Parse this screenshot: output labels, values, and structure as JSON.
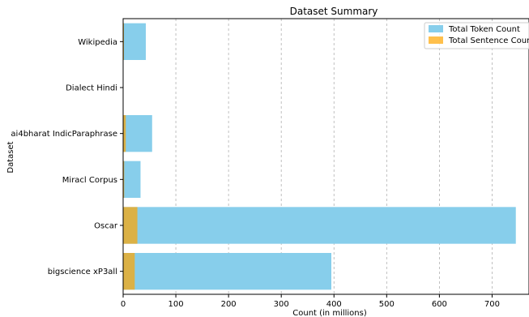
{
  "chart_data": {
    "type": "bar",
    "orientation": "horizontal",
    "stacking": "overlay",
    "title": "Dataset Summary",
    "xlabel": "Count (in millions)",
    "ylabel": "Dataset",
    "xlim": [
      0,
      770
    ],
    "xticks": [
      0,
      100,
      200,
      300,
      400,
      500,
      600,
      700
    ],
    "xtick_labels": [
      "0",
      "100",
      "200",
      "300",
      "400",
      "500",
      "600",
      "700"
    ],
    "grid": {
      "x": true,
      "y": false,
      "style": "dashed"
    },
    "legend_position": "top-right",
    "categories": [
      "Wikipedia",
      "Dialect Hindi",
      "ai4bharat IndicParaphrase",
      "Miracl Corpus",
      "Oscar",
      "bigscience xP3all"
    ],
    "series": [
      {
        "name": "Total Token Count",
        "color": "#87CEEB",
        "values": [
          43,
          0.5,
          55,
          33,
          745,
          395
        ]
      },
      {
        "name": "Total Sentence Count",
        "color": "#FFA500",
        "opacity": 0.7,
        "values": [
          1.5,
          0.05,
          5,
          2,
          27,
          22
        ]
      }
    ]
  }
}
